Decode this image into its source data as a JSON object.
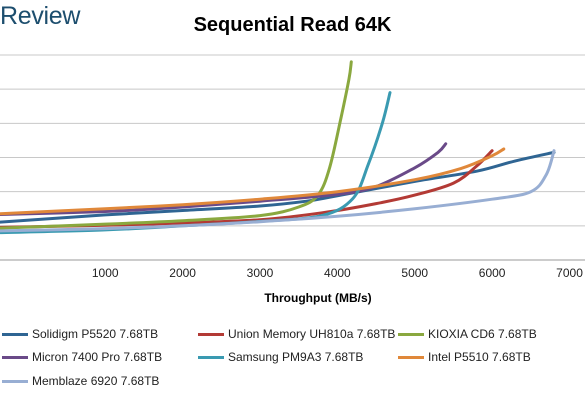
{
  "brand": "Review",
  "chart_data": {
    "type": "line",
    "title": "Sequential Read 64K",
    "xlabel": "Throughput (MB/s)",
    "ylabel": "",
    "xlim": [
      -360,
      7200
    ],
    "ylim": [
      0,
      6
    ],
    "xticks": [
      1000,
      2000,
      3000,
      4000,
      5000,
      6000,
      7000
    ],
    "grid": "horizontal",
    "legend_position": "bottom",
    "series": [
      {
        "name": "Solidigm P5520 7.68TB",
        "color": "#2f6593",
        "points": [
          [
            -400,
            1.1
          ],
          [
            1000,
            1.32
          ],
          [
            2000,
            1.45
          ],
          [
            3000,
            1.58
          ],
          [
            3600,
            1.72
          ],
          [
            4000,
            1.88
          ],
          [
            5000,
            2.3
          ],
          [
            5800,
            2.6
          ],
          [
            6300,
            2.9
          ],
          [
            6800,
            3.15
          ]
        ]
      },
      {
        "name": "Union Memory UH810a 7.68TB",
        "color": "#b33a35",
        "points": [
          [
            -400,
            0.95
          ],
          [
            1000,
            1.02
          ],
          [
            2000,
            1.08
          ],
          [
            3000,
            1.18
          ],
          [
            3800,
            1.38
          ],
          [
            4500,
            1.65
          ],
          [
            5000,
            1.9
          ],
          [
            5500,
            2.25
          ],
          [
            5800,
            2.75
          ],
          [
            6000,
            3.2
          ]
        ]
      },
      {
        "name": "KIOXIA CD6 7.68TB",
        "color": "#8aa83f",
        "points": [
          [
            -400,
            0.93
          ],
          [
            1000,
            1.05
          ],
          [
            2000,
            1.15
          ],
          [
            3000,
            1.3
          ],
          [
            3500,
            1.55
          ],
          [
            3750,
            1.9
          ],
          [
            3900,
            2.7
          ],
          [
            4050,
            4.2
          ],
          [
            4150,
            5.3
          ],
          [
            4180,
            5.8
          ]
        ]
      },
      {
        "name": "Micron 7400 Pro 7.68TB",
        "color": "#6a4a88",
        "points": [
          [
            -400,
            1.33
          ],
          [
            1000,
            1.42
          ],
          [
            2000,
            1.55
          ],
          [
            3000,
            1.72
          ],
          [
            4000,
            1.92
          ],
          [
            4500,
            2.15
          ],
          [
            5000,
            2.7
          ],
          [
            5300,
            3.15
          ],
          [
            5400,
            3.4
          ]
        ]
      },
      {
        "name": "Samsung PM9A3 7.68TB",
        "color": "#3a9ab1",
        "points": [
          [
            -400,
            0.8
          ],
          [
            1000,
            0.88
          ],
          [
            2000,
            1.0
          ],
          [
            3000,
            1.13
          ],
          [
            3800,
            1.3
          ],
          [
            4200,
            1.8
          ],
          [
            4400,
            2.8
          ],
          [
            4580,
            4.0
          ],
          [
            4680,
            4.9
          ]
        ]
      },
      {
        "name": "Intel P5510 7.68TB",
        "color": "#e0883a",
        "points": [
          [
            -400,
            1.35
          ],
          [
            1000,
            1.5
          ],
          [
            2000,
            1.62
          ],
          [
            3000,
            1.78
          ],
          [
            4000,
            2.0
          ],
          [
            5000,
            2.35
          ],
          [
            5600,
            2.68
          ],
          [
            6000,
            3.05
          ],
          [
            6150,
            3.25
          ]
        ]
      },
      {
        "name": "Memblaze 6920 7.68TB",
        "color": "#98aed3",
        "points": [
          [
            -400,
            0.85
          ],
          [
            1000,
            0.92
          ],
          [
            2000,
            1.0
          ],
          [
            3000,
            1.12
          ],
          [
            4000,
            1.28
          ],
          [
            5000,
            1.5
          ],
          [
            6000,
            1.78
          ],
          [
            6500,
            2.0
          ],
          [
            6700,
            2.5
          ],
          [
            6800,
            3.2
          ]
        ]
      }
    ]
  }
}
